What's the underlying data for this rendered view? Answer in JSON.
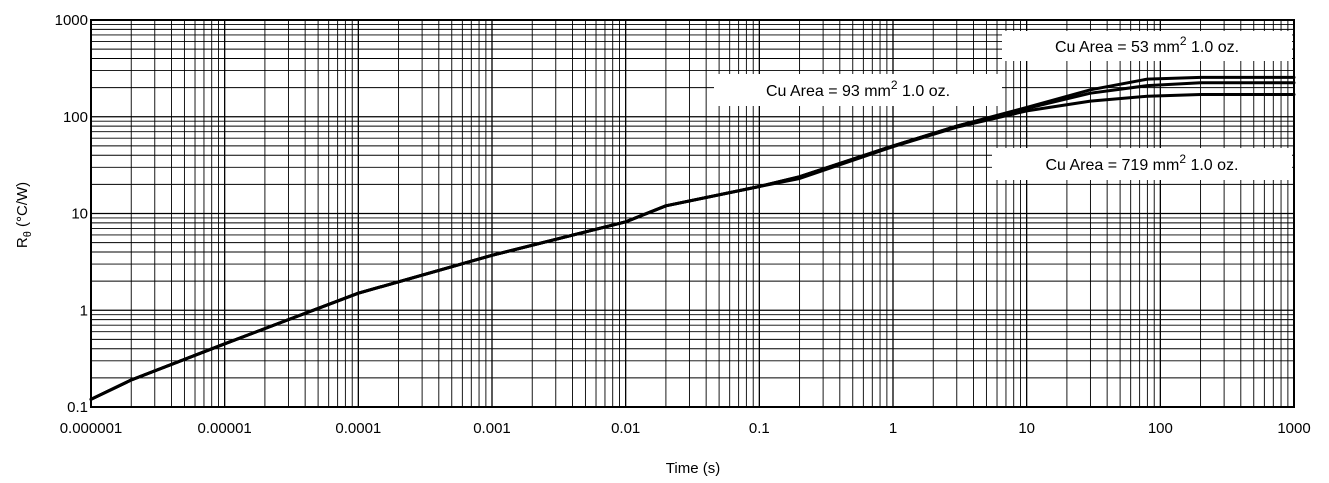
{
  "chart_data": {
    "type": "line",
    "x_scale": "log",
    "y_scale": "log",
    "xlim": [
      1e-06,
      1000
    ],
    "ylim": [
      0.1,
      1000
    ],
    "grid": true,
    "xlabel": "Time (s)",
    "ylabel_main": "R",
    "ylabel_sub": "θ",
    "ylabel_rest": " (°C/W)",
    "x_ticks": [
      "0.000001",
      "0.00001",
      "0.0001",
      "0.001",
      "0.01",
      "0.1",
      "1",
      "10",
      "100",
      "1000"
    ],
    "y_ticks": [
      "0.1",
      "1",
      "10",
      "100",
      "1000"
    ],
    "annotations": [
      {
        "pre": "Cu Area = 53 mm",
        "sup": "2",
        "post": " 1.0 oz."
      },
      {
        "pre": "Cu Area = 93 mm",
        "sup": "2",
        "post": " 1.0 oz."
      },
      {
        "pre": "Cu Area = 719 mm",
        "sup": "2",
        "post": " 1.0 oz."
      }
    ],
    "series": [
      {
        "annotation_index": 0,
        "x": [
          1e-06,
          2e-06,
          1e-05,
          0.0001,
          0.001,
          0.01,
          0.02,
          0.1,
          0.2,
          1,
          3,
          10,
          30,
          80,
          200,
          1000
        ],
        "y": [
          0.12,
          0.19,
          0.45,
          1.5,
          3.7,
          8.2,
          12,
          19,
          24,
          50,
          80,
          125,
          190,
          245,
          255,
          255
        ]
      },
      {
        "annotation_index": 1,
        "x": [
          1e-06,
          2e-06,
          1e-05,
          0.0001,
          0.001,
          0.01,
          0.02,
          0.1,
          0.2,
          1,
          3,
          10,
          30,
          80,
          200,
          1000
        ],
        "y": [
          0.12,
          0.19,
          0.45,
          1.5,
          3.7,
          8.2,
          12,
          19,
          24,
          50,
          80,
          122,
          175,
          210,
          225,
          225
        ]
      },
      {
        "annotation_index": 2,
        "x": [
          1e-06,
          2e-06,
          1e-05,
          0.0001,
          0.001,
          0.01,
          0.02,
          0.1,
          0.2,
          1,
          3,
          10,
          30,
          80,
          200,
          1000
        ],
        "y": [
          0.12,
          0.19,
          0.45,
          1.5,
          3.7,
          8.2,
          12,
          19,
          23,
          49,
          78,
          115,
          145,
          163,
          170,
          170
        ]
      }
    ]
  }
}
